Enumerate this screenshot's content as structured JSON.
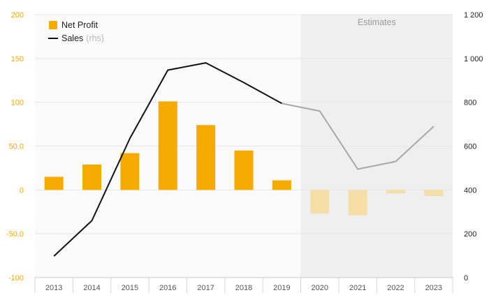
{
  "chart_data": {
    "type": "bar",
    "categories": [
      "2013",
      "2014",
      "2015",
      "2016",
      "2017",
      "2018",
      "2019",
      "2020",
      "2021",
      "2022",
      "2023"
    ],
    "series": [
      {
        "name": "Net Profit",
        "kind": "bar",
        "axis": "left",
        "values": [
          15,
          29,
          42,
          101,
          74,
          45,
          11,
          -27,
          -29,
          -4,
          -7
        ]
      },
      {
        "name": "Sales",
        "kind": "line",
        "axis": "right",
        "values": [
          98,
          260,
          635,
          947,
          980,
          890,
          795,
          760,
          495,
          530,
          690
        ]
      }
    ],
    "estimates_from": "2020",
    "estimates_label": "Estimates",
    "legend": {
      "bar_label": "Net Profit",
      "line_label": "Sales",
      "line_note": "(rhs)",
      "position": "top-left"
    },
    "y_left": {
      "range": [
        -100,
        200
      ],
      "ticks": [
        200,
        150,
        100,
        50,
        0,
        -50,
        -100
      ],
      "tick_labels": [
        "200",
        "150",
        "100",
        "50.0",
        "0",
        "-50.0",
        "-100"
      ]
    },
    "y_right": {
      "range": [
        0,
        1200
      ],
      "ticks": [
        1200,
        1000,
        800,
        600,
        400,
        200,
        0
      ],
      "tick_labels": [
        "1 200",
        "1 000",
        "800",
        "600",
        "400",
        "200",
        "0"
      ]
    },
    "grid": true,
    "colors": {
      "bar_actual": "#f5aa00",
      "bar_estimate": "#f5dda6",
      "line_actual": "#111111",
      "line_estimate": "#a8a8a8",
      "estimate_band": "#efefef",
      "plot_background": "#fafafa",
      "left_axis_text": "#f5a800"
    }
  }
}
